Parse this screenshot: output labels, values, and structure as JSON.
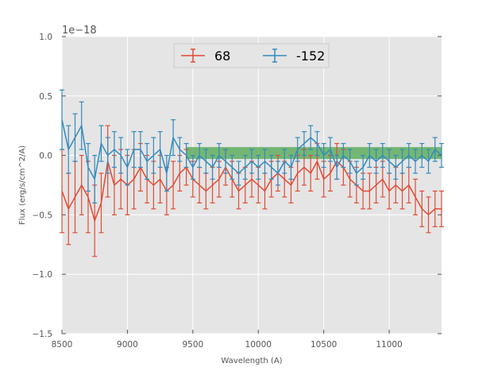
{
  "chart_data": {
    "type": "line",
    "title": "",
    "xlabel": "Wavelength (A)",
    "ylabel": "Flux (erg/s/cm^2/A)",
    "offset_text": "1e−18",
    "xlim": [
      8500,
      11400
    ],
    "ylim": [
      -1.5,
      1.0
    ],
    "xticks": [
      8500,
      9000,
      9500,
      10000,
      10500,
      11000
    ],
    "xtick_labels": [
      "8500",
      "9000",
      "9500",
      "10000",
      "10500",
      "11000"
    ],
    "yticks": [
      -1.5,
      -1.0,
      -0.5,
      0.0,
      0.5,
      1.0
    ],
    "ytick_labels": [
      "−1.5",
      "−1.0",
      "−0.5",
      "0.0",
      "0.5",
      "1.0"
    ],
    "grid": true,
    "legend_position": "top-center",
    "band": {
      "x": [
        9450,
        11400
      ],
      "y": [
        -0.03,
        0.07
      ],
      "color": "#4ca64c"
    },
    "series": [
      {
        "name": "68",
        "color": "#e24a33",
        "x": [
          8500,
          8550,
          8600,
          8650,
          8700,
          8750,
          8800,
          8850,
          8900,
          8950,
          9000,
          9050,
          9100,
          9150,
          9200,
          9250,
          9300,
          9350,
          9400,
          9450,
          9500,
          9550,
          9600,
          9650,
          9700,
          9750,
          9800,
          9850,
          9900,
          9950,
          10000,
          10050,
          10100,
          10150,
          10200,
          10250,
          10300,
          10350,
          10400,
          10450,
          10500,
          10550,
          10600,
          10650,
          10700,
          10750,
          10800,
          10850,
          10900,
          10950,
          11000,
          11050,
          11100,
          11150,
          11200,
          11250,
          11300,
          11350,
          11400
        ],
        "y": [
          -0.3,
          -0.45,
          -0.35,
          -0.25,
          -0.35,
          -0.55,
          -0.4,
          -0.05,
          -0.25,
          -0.2,
          -0.25,
          -0.2,
          -0.1,
          -0.2,
          -0.25,
          -0.2,
          -0.3,
          -0.25,
          -0.15,
          -0.1,
          -0.2,
          -0.25,
          -0.3,
          -0.25,
          -0.2,
          -0.1,
          -0.2,
          -0.3,
          -0.25,
          -0.2,
          -0.25,
          -0.3,
          -0.2,
          -0.15,
          -0.2,
          -0.25,
          -0.15,
          -0.1,
          -0.15,
          -0.05,
          -0.2,
          -0.15,
          -0.05,
          -0.1,
          -0.2,
          -0.25,
          -0.3,
          -0.3,
          -0.25,
          -0.2,
          -0.3,
          -0.25,
          -0.3,
          -0.25,
          -0.35,
          -0.45,
          -0.5,
          -0.45,
          -0.45
        ],
        "err": [
          0.35,
          0.3,
          0.3,
          0.25,
          0.3,
          0.3,
          0.25,
          0.3,
          0.25,
          0.25,
          0.25,
          0.25,
          0.2,
          0.2,
          0.2,
          0.2,
          0.2,
          0.2,
          0.15,
          0.15,
          0.15,
          0.15,
          0.15,
          0.15,
          0.15,
          0.15,
          0.15,
          0.15,
          0.15,
          0.15,
          0.15,
          0.15,
          0.15,
          0.15,
          0.15,
          0.15,
          0.15,
          0.15,
          0.15,
          0.15,
          0.15,
          0.15,
          0.15,
          0.15,
          0.15,
          0.15,
          0.15,
          0.15,
          0.15,
          0.15,
          0.15,
          0.15,
          0.15,
          0.15,
          0.15,
          0.15,
          0.15,
          0.15,
          0.15
        ]
      },
      {
        "name": "-152",
        "color": "#348abd",
        "x": [
          8500,
          8550,
          8600,
          8650,
          8700,
          8750,
          8800,
          8850,
          8900,
          8950,
          9000,
          9050,
          9100,
          9150,
          9200,
          9250,
          9300,
          9350,
          9400,
          9450,
          9500,
          9550,
          9600,
          9650,
          9700,
          9750,
          9800,
          9850,
          9900,
          9950,
          10000,
          10050,
          10100,
          10150,
          10200,
          10250,
          10300,
          10350,
          10400,
          10450,
          10500,
          10550,
          10600,
          10650,
          10700,
          10750,
          10800,
          10850,
          10900,
          10950,
          11000,
          11050,
          11100,
          11150,
          11200,
          11250,
          11300,
          11350,
          11400
        ],
        "y": [
          0.3,
          0.05,
          0.15,
          0.25,
          -0.1,
          -0.2,
          0.1,
          0.0,
          0.05,
          0.0,
          -0.1,
          0.05,
          0.05,
          -0.05,
          0.0,
          0.05,
          -0.15,
          0.15,
          0.05,
          0.0,
          -0.1,
          0.0,
          -0.05,
          -0.1,
          0.0,
          -0.05,
          -0.1,
          -0.15,
          -0.1,
          -0.05,
          -0.1,
          -0.05,
          -0.1,
          -0.15,
          -0.05,
          -0.1,
          0.05,
          0.1,
          0.15,
          0.1,
          0.0,
          0.05,
          -0.1,
          0.0,
          -0.05,
          -0.15,
          -0.1,
          0.0,
          -0.05,
          0.0,
          -0.05,
          -0.1,
          -0.05,
          0.0,
          -0.05,
          0.0,
          -0.05,
          0.05,
          0.0
        ],
        "err": [
          0.25,
          0.2,
          0.2,
          0.2,
          0.2,
          0.2,
          0.15,
          0.15,
          0.15,
          0.15,
          0.15,
          0.15,
          0.15,
          0.15,
          0.15,
          0.15,
          0.15,
          0.15,
          0.1,
          0.1,
          0.1,
          0.1,
          0.1,
          0.1,
          0.1,
          0.1,
          0.1,
          0.1,
          0.1,
          0.1,
          0.1,
          0.1,
          0.1,
          0.1,
          0.1,
          0.1,
          0.1,
          0.1,
          0.1,
          0.1,
          0.1,
          0.1,
          0.1,
          0.1,
          0.1,
          0.1,
          0.1,
          0.1,
          0.1,
          0.1,
          0.1,
          0.1,
          0.1,
          0.1,
          0.1,
          0.1,
          0.1,
          0.1,
          0.1
        ]
      }
    ]
  }
}
